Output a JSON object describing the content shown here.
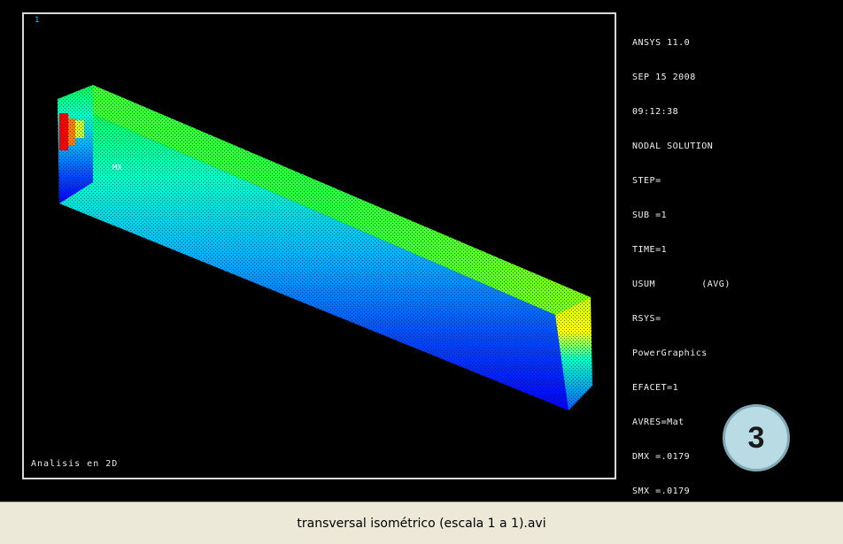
{
  "window": {
    "number": "1",
    "analysis_label": "Analisis en 2D"
  },
  "legend": {
    "lines": [
      "ANSYS 11.0",
      "SEP 15 2008",
      "09:12:38",
      "NODAL SOLUTION",
      "STEP=",
      "SUB =1",
      "TIME=1",
      "USUM        (AVG)",
      "RSYS=",
      "PowerGraphics",
      "EFACET=1",
      "AVRES=Mat",
      "DMX =.0179",
      "SMX =.0179"
    ]
  },
  "badge": {
    "label": "3"
  },
  "status": {
    "filename": "transversal isométrico (escala 1 a 1).avi"
  },
  "colors": {
    "background": "#000000",
    "frame": "#d8d8d8",
    "badge_fill": "#b9dbe3",
    "statusbar": "#ece9d8",
    "contour": [
      "#0000ff",
      "#0050ff",
      "#00b4ff",
      "#00ffc8",
      "#00ff50",
      "#a0ff00",
      "#ffff00",
      "#ff8000",
      "#ff0000"
    ]
  }
}
